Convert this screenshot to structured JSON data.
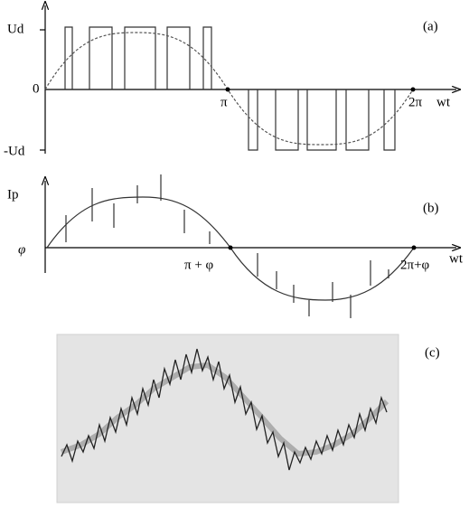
{
  "panel_a": {
    "label": "(a)",
    "y_top": "Ud",
    "origin": "0",
    "y_bottom": "-Ud",
    "x_pi": "π",
    "x_2pi": "2π",
    "x_axis": "wt"
  },
  "panel_b": {
    "label": "(b)",
    "y_top": "Ip",
    "origin": "φ",
    "x_pi": "π + φ",
    "x_2pi": "2π+φ",
    "x_axis": "wt"
  },
  "panel_c": {
    "label": "(c)"
  }
}
